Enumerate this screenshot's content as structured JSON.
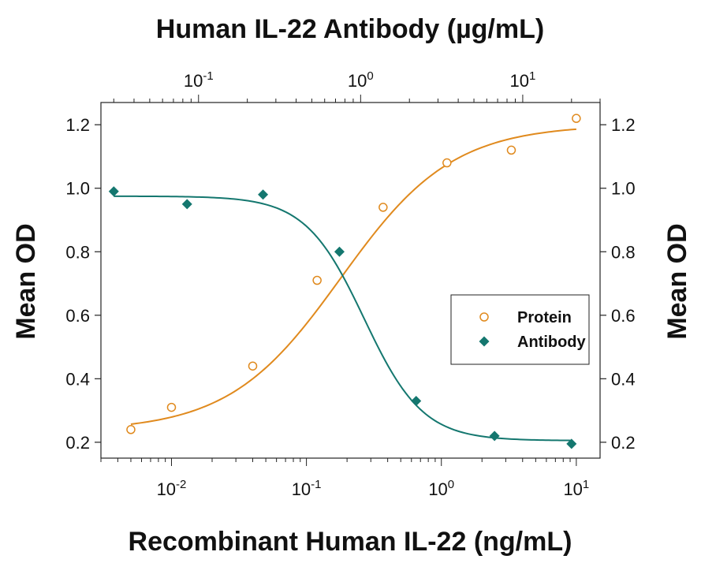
{
  "chart_data": {
    "type": "scatter",
    "title": "Human IL-22 Antibody (µg/mL)",
    "xlabel": "Recombinant Human IL-22 (ng/mL)",
    "ylabel": "Mean OD",
    "ylabel_right": "Mean OD",
    "x_scale": "log",
    "xlim": [
      0.003,
      15
    ],
    "top_x_scale": "log",
    "top_xlim": [
      0.025,
      30
    ],
    "ylim": [
      0.15,
      1.27
    ],
    "y_ticks": [
      "0.2",
      "0.4",
      "0.6",
      "0.8",
      "1.0",
      "1.2"
    ],
    "x_tick_labels": [
      {
        "value": 0.01,
        "base": "10",
        "exp": "-2"
      },
      {
        "value": 0.1,
        "base": "10",
        "exp": "-1"
      },
      {
        "value": 1,
        "base": "10",
        "exp": "0"
      },
      {
        "value": 10,
        "base": "10",
        "exp": "1"
      }
    ],
    "top_x_tick_labels": [
      {
        "value": 0.1,
        "base": "10",
        "exp": "-1"
      },
      {
        "value": 1,
        "base": "10",
        "exp": "0"
      },
      {
        "value": 10,
        "base": "10",
        "exp": "1"
      }
    ],
    "grid": false,
    "legend_position": "right",
    "series": [
      {
        "name": "Protein",
        "axis": "bottom",
        "marker": "open-circle",
        "color": "#e08a1e",
        "x": [
          0.005,
          0.01,
          0.04,
          0.12,
          0.37,
          1.1,
          3.3,
          10
        ],
        "y": [
          0.24,
          0.31,
          0.44,
          0.71,
          0.94,
          1.08,
          1.12,
          1.22
        ],
        "fit": {
          "bottom": 0.235,
          "top": 1.2,
          "ec50": 0.18,
          "hill": 1.05
        }
      },
      {
        "name": "Antibody",
        "axis": "top",
        "marker": "filled-diamond",
        "color": "#14776f",
        "x": [
          0.03,
          0.085,
          0.25,
          0.74,
          2.2,
          6.7,
          20
        ],
        "y": [
          0.99,
          0.95,
          0.98,
          0.8,
          0.33,
          0.22,
          0.195
        ],
        "fit": {
          "bottom": 0.205,
          "top": 0.975,
          "ec50": 1.05,
          "hill": 2.4
        }
      }
    ]
  }
}
